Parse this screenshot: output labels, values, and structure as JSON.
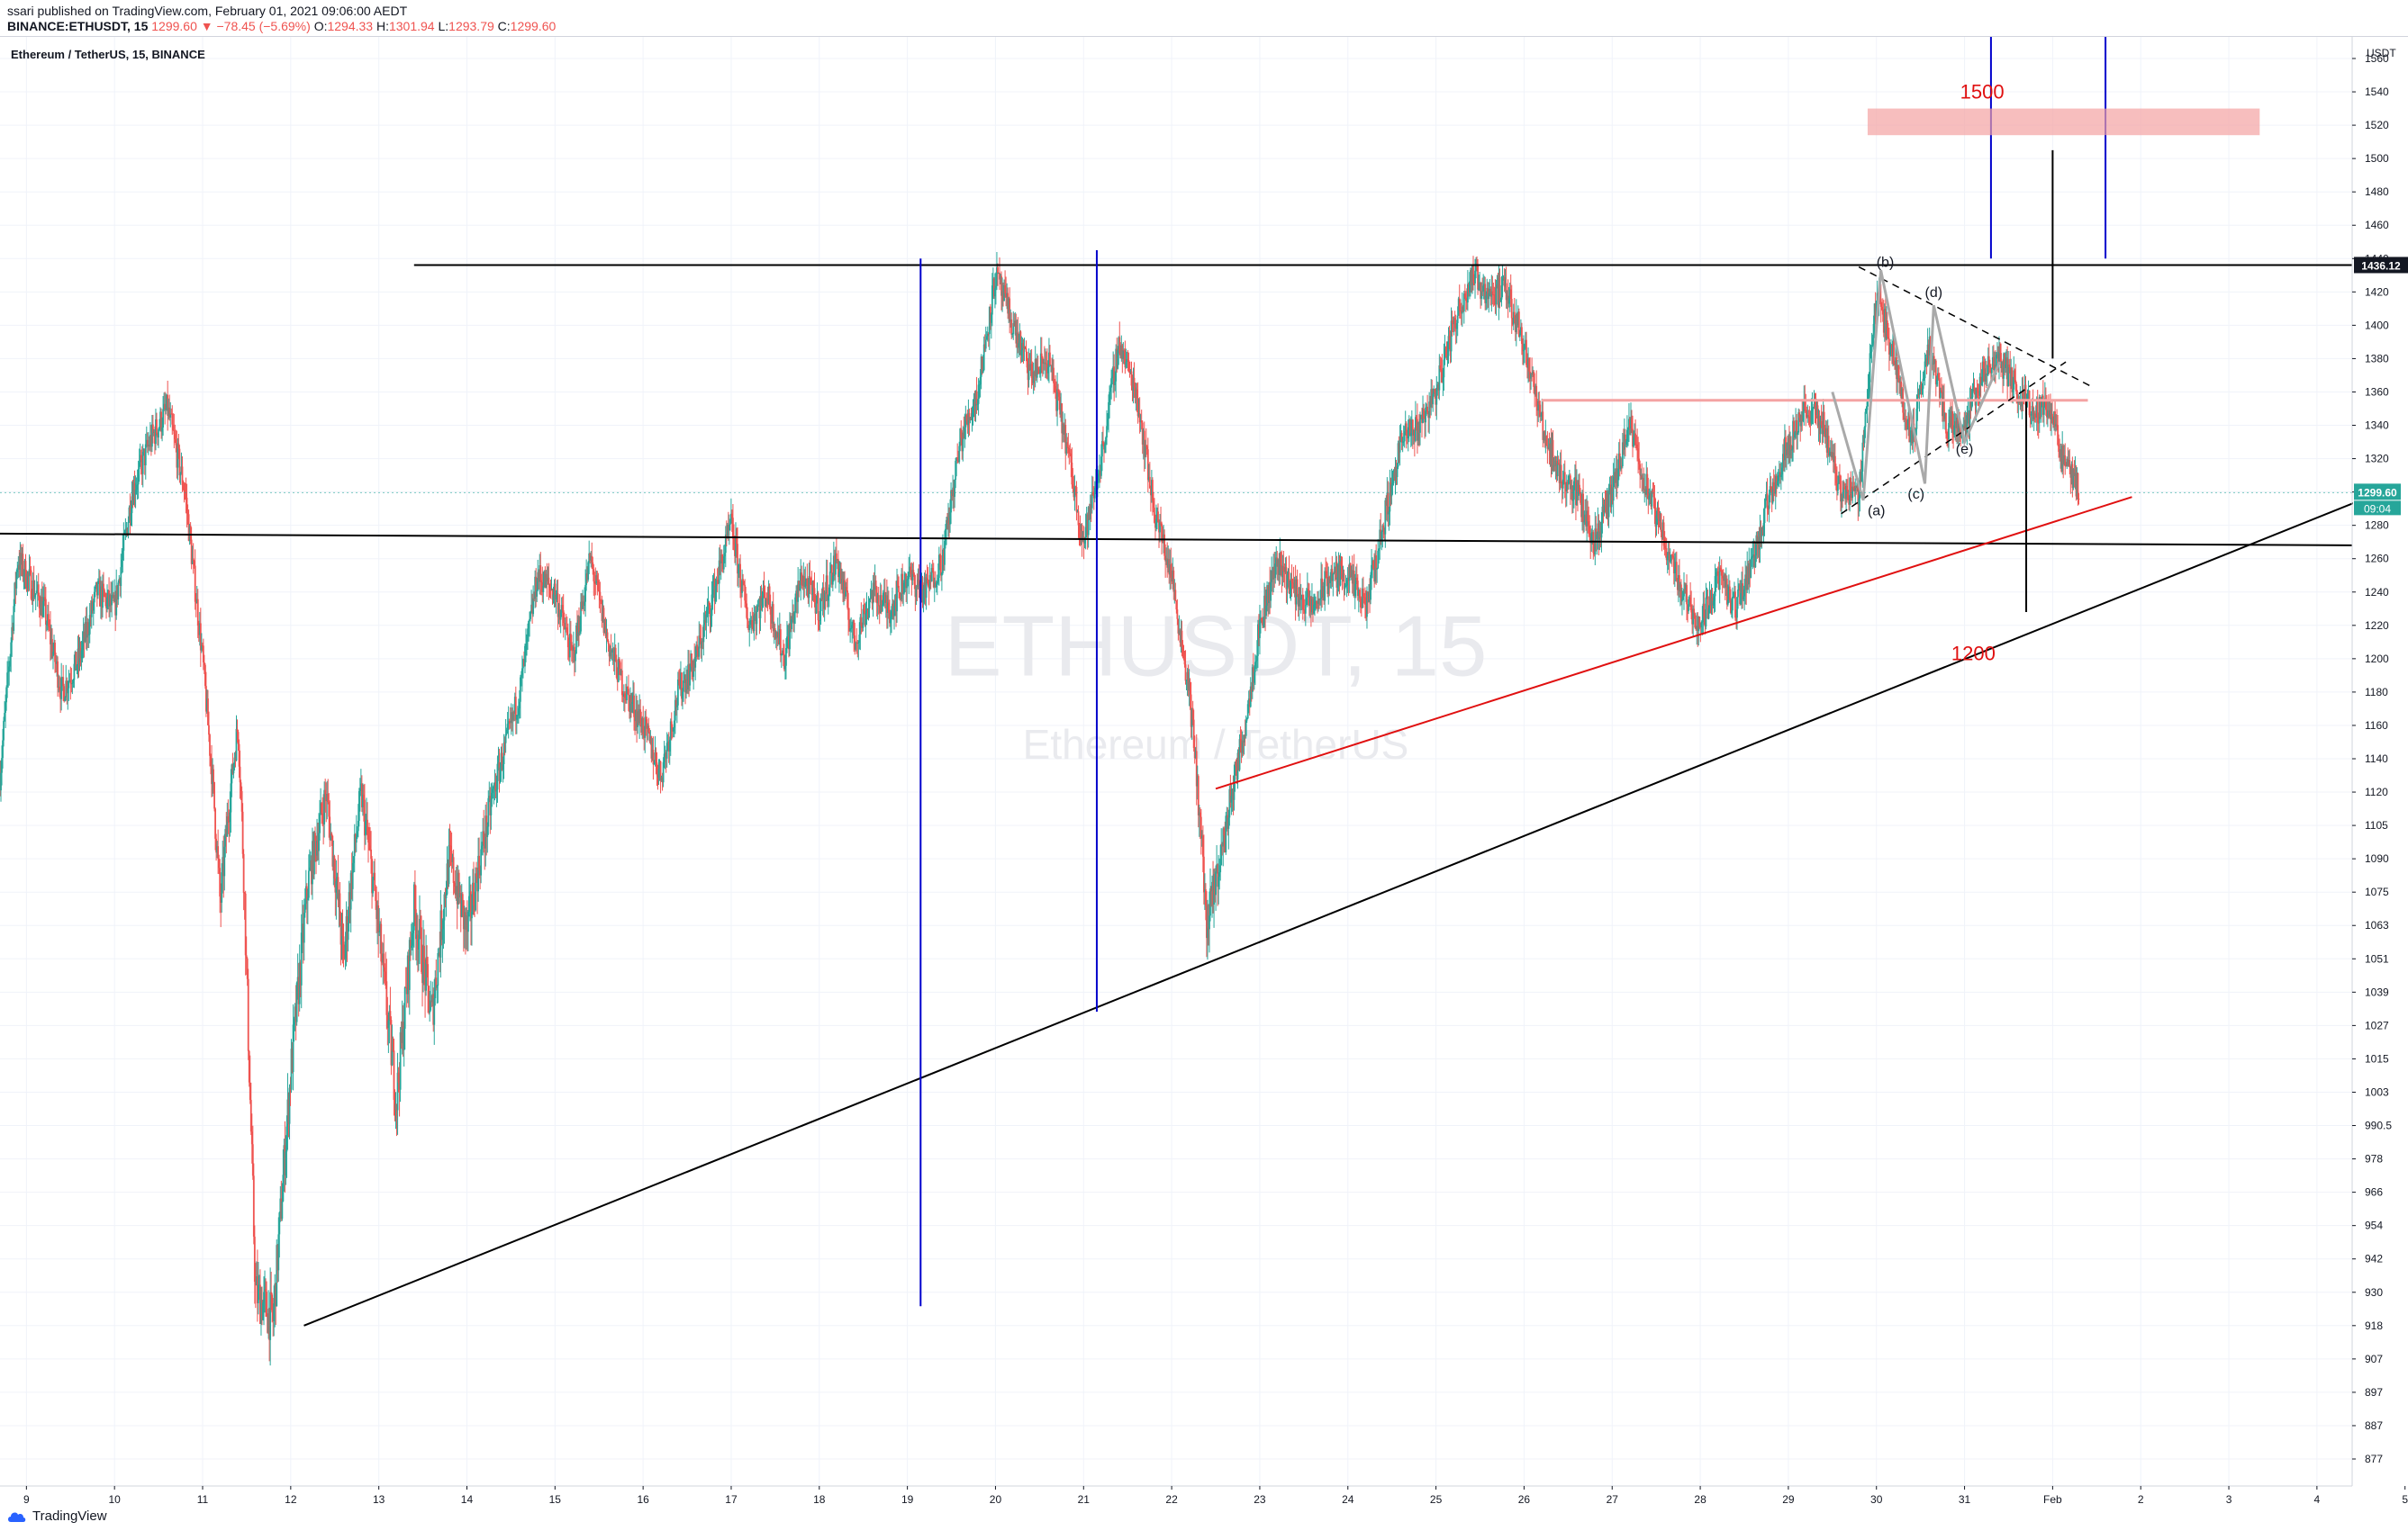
{
  "header": {
    "published": "ssari published on TradingView.com, February 01, 2021 09:06:00 AEDT",
    "symbol": "BINANCE:ETHUSDT, 15",
    "change": "1299.60 ▼ −78.45 (−5.69%)",
    "o_label": "O:",
    "o_value": "1294.33",
    "h_label": "H:",
    "h_value": "1301.94",
    "l_label": "L:",
    "l_value": "1293.79",
    "c_label": "C:",
    "c_value": "1299.60"
  },
  "footer": {
    "brand": "TradingView"
  },
  "colors": {
    "up": "#26a69a",
    "down": "#ef5350",
    "blue": "#0000cc",
    "red_line": "#e01010",
    "target": "#f4a3a3",
    "price_tag": "#26a69a"
  },
  "chart_data": {
    "type": "candlestick",
    "title": "Ethereum / TetherUS, 15, BINANCE",
    "watermark_symbol": "ETHUSDT, 15",
    "watermark_name": "Ethereum / TetherUS",
    "currency_label": "USDT",
    "x_tick_labels": [
      "9",
      "10",
      "11",
      "12",
      "13",
      "14",
      "15",
      "16",
      "17",
      "18",
      "19",
      "20",
      "21",
      "22",
      "23",
      "24",
      "25",
      "26",
      "27",
      "28",
      "29",
      "30",
      "31",
      "Feb",
      "2",
      "3",
      "4",
      "5"
    ],
    "y_tick_labels": [
      1560,
      1540,
      1520,
      1500,
      1480,
      1460,
      1440,
      1420,
      1400,
      1380,
      1360,
      1340,
      1320,
      1300,
      1280,
      1260,
      1240,
      1220,
      1200,
      1180,
      1160,
      1140,
      1120,
      1105,
      1090,
      1075,
      1063,
      1051,
      1039,
      1027,
      1015,
      1003,
      990.5,
      978,
      966,
      954,
      942,
      930,
      918,
      907,
      897,
      887,
      877
    ],
    "last_price": "1299.60",
    "countdown": "09:04",
    "resistance_tag": "1436.12",
    "price_path": [
      [
        8.7,
        1130
      ],
      [
        8.9,
        1260
      ],
      [
        9.2,
        1230
      ],
      [
        9.4,
        1180
      ],
      [
        9.6,
        1200
      ],
      [
        9.8,
        1240
      ],
      [
        10.0,
        1230
      ],
      [
        10.2,
        1300
      ],
      [
        10.4,
        1330
      ],
      [
        10.6,
        1350
      ],
      [
        10.8,
        1300
      ],
      [
        11.0,
        1200
      ],
      [
        11.2,
        1070
      ],
      [
        11.4,
        1160
      ],
      [
        11.6,
        930
      ],
      [
        11.8,
        920
      ],
      [
        12.0,
        1010
      ],
      [
        12.2,
        1080
      ],
      [
        12.4,
        1120
      ],
      [
        12.6,
        1050
      ],
      [
        12.8,
        1120
      ],
      [
        13.0,
        1060
      ],
      [
        13.2,
        1000
      ],
      [
        13.4,
        1070
      ],
      [
        13.6,
        1030
      ],
      [
        13.8,
        1090
      ],
      [
        14.0,
        1060
      ],
      [
        14.2,
        1100
      ],
      [
        14.4,
        1140
      ],
      [
        14.6,
        1180
      ],
      [
        14.8,
        1250
      ],
      [
        15.0,
        1240
      ],
      [
        15.2,
        1200
      ],
      [
        15.4,
        1260
      ],
      [
        15.6,
        1210
      ],
      [
        15.8,
        1180
      ],
      [
        16.0,
        1160
      ],
      [
        16.2,
        1130
      ],
      [
        16.4,
        1180
      ],
      [
        16.6,
        1200
      ],
      [
        16.8,
        1240
      ],
      [
        17.0,
        1280
      ],
      [
        17.2,
        1220
      ],
      [
        17.4,
        1240
      ],
      [
        17.6,
        1200
      ],
      [
        17.8,
        1250
      ],
      [
        18.0,
        1230
      ],
      [
        18.2,
        1260
      ],
      [
        18.4,
        1210
      ],
      [
        18.6,
        1240
      ],
      [
        18.8,
        1230
      ],
      [
        19.0,
        1250
      ],
      [
        19.2,
        1240
      ],
      [
        19.4,
        1260
      ],
      [
        19.6,
        1330
      ],
      [
        19.8,
        1360
      ],
      [
        20.0,
        1430
      ],
      [
        20.2,
        1400
      ],
      [
        20.4,
        1370
      ],
      [
        20.6,
        1380
      ],
      [
        20.8,
        1330
      ],
      [
        21.0,
        1270
      ],
      [
        21.2,
        1320
      ],
      [
        21.4,
        1390
      ],
      [
        21.6,
        1360
      ],
      [
        21.8,
        1290
      ],
      [
        22.0,
        1250
      ],
      [
        22.2,
        1180
      ],
      [
        22.4,
        1060
      ],
      [
        22.6,
        1100
      ],
      [
        22.8,
        1150
      ],
      [
        23.0,
        1220
      ],
      [
        23.2,
        1260
      ],
      [
        23.4,
        1240
      ],
      [
        23.6,
        1230
      ],
      [
        23.8,
        1250
      ],
      [
        24.0,
        1250
      ],
      [
        24.2,
        1230
      ],
      [
        24.4,
        1280
      ],
      [
        24.6,
        1330
      ],
      [
        24.8,
        1340
      ],
      [
        25.0,
        1360
      ],
      [
        25.2,
        1400
      ],
      [
        25.4,
        1430
      ],
      [
        25.6,
        1420
      ],
      [
        25.8,
        1420
      ],
      [
        26.0,
        1390
      ],
      [
        26.2,
        1340
      ],
      [
        26.4,
        1310
      ],
      [
        26.6,
        1300
      ],
      [
        26.8,
        1270
      ],
      [
        27.0,
        1300
      ],
      [
        27.2,
        1340
      ],
      [
        27.4,
        1300
      ],
      [
        27.6,
        1270
      ],
      [
        27.8,
        1240
      ],
      [
        28.0,
        1220
      ],
      [
        28.2,
        1250
      ],
      [
        28.4,
        1230
      ],
      [
        28.6,
        1260
      ],
      [
        28.8,
        1300
      ],
      [
        29.0,
        1330
      ],
      [
        29.2,
        1350
      ],
      [
        29.4,
        1340
      ],
      [
        29.6,
        1300
      ],
      [
        29.8,
        1300
      ],
      [
        30.0,
        1420
      ],
      [
        30.2,
        1380
      ],
      [
        30.4,
        1330
      ],
      [
        30.6,
        1390
      ],
      [
        30.8,
        1340
      ],
      [
        31.0,
        1340
      ],
      [
        31.2,
        1370
      ],
      [
        31.4,
        1380
      ],
      [
        31.6,
        1360
      ],
      [
        31.8,
        1350
      ],
      [
        32.0,
        1350
      ],
      [
        32.1,
        1320
      ],
      [
        32.2,
        1310
      ],
      [
        32.3,
        1300
      ]
    ],
    "annotations": {
      "labels": [
        "(a)",
        "(b)",
        "(c)",
        "(d)",
        "(e)"
      ],
      "targets": [
        "1500",
        "1200"
      ]
    }
  }
}
